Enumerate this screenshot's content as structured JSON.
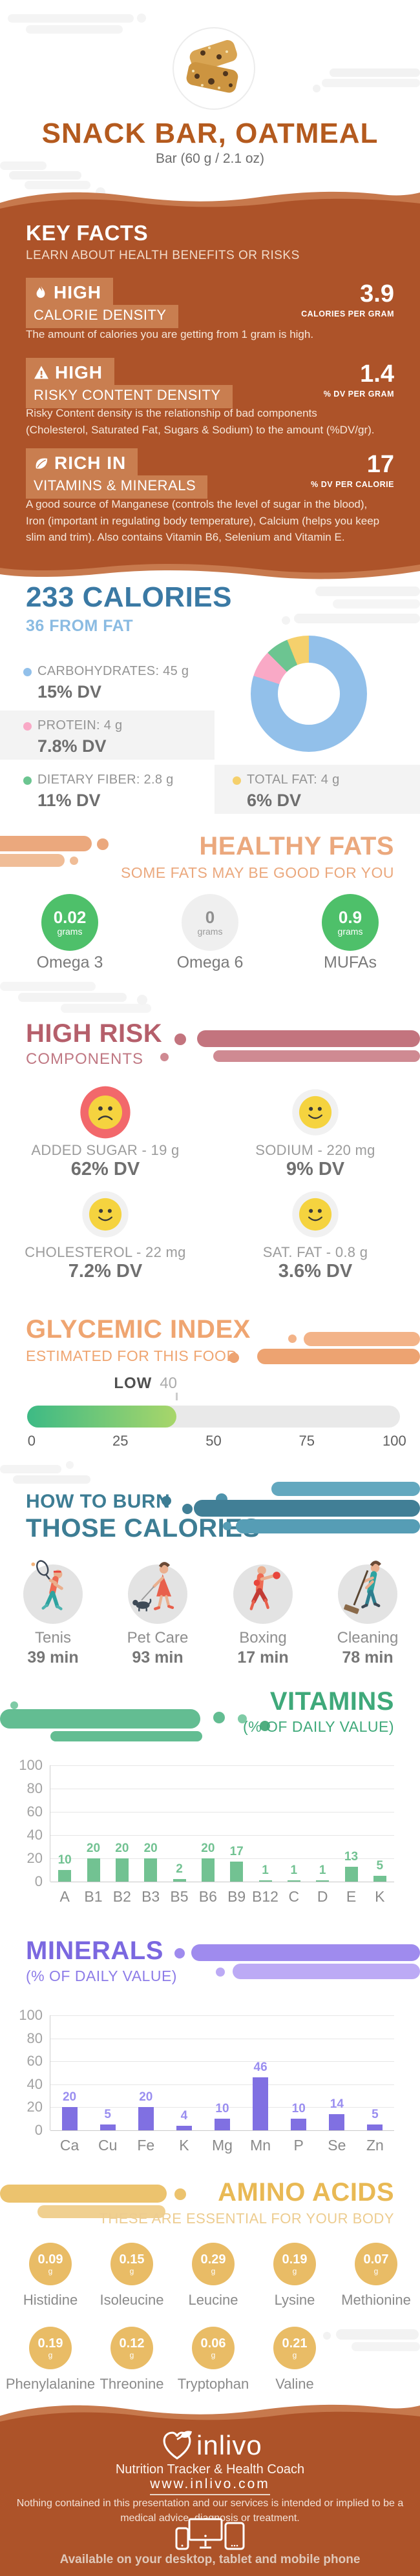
{
  "header": {
    "title": "SNACK BAR, OATMEAL",
    "subtitle": "Bar (60 g / 2.1 oz)",
    "image": "oatmeal-snack-bar-photo"
  },
  "key_facts": {
    "title": "KEY FACTS",
    "subtitle": "LEARN ABOUT HEALTH BENEFITS OR RISKS",
    "facts": [
      {
        "icon": "flame-icon",
        "badge_line1": "HIGH",
        "badge_line2": "CALORIE DENSITY",
        "value": "3.9",
        "unit": "CALORIES PER GRAM",
        "description": "The amount of calories you are getting from 1 gram is high."
      },
      {
        "icon": "warning-icon",
        "badge_line1": "HIGH",
        "badge_line2": "RISKY CONTENT DENSITY",
        "value": "1.4",
        "unit": "% DV PER GRAM",
        "description": "Risky Content density is the relationship of bad components (Cholesterol, Saturated Fat, Sugars & Sodium) to the amount (%DV/gr)."
      },
      {
        "icon": "leaf-icon",
        "badge_line1": "RICH IN",
        "badge_line2": "VITAMINS & MINERALS",
        "value": "17",
        "unit": "% DV PER CALORIE",
        "description": "A good source of Manganese (controls the level of sugar in the blood), Iron (important in regulating body temperature), Calcium (helps you keep slim and trim). Also contains Vitamin B6, Selenium and Vitamin E."
      }
    ]
  },
  "calories": {
    "title": "233 CALORIES",
    "subtitle": "36 FROM FAT",
    "legend": [
      {
        "label": "CARBOHYDRATES: 45 g",
        "dv": "15% DV",
        "color": "#92c0ea"
      },
      {
        "label": "PROTEIN: 4 g",
        "dv": "7.8% DV",
        "color": "#f9a9c6"
      },
      {
        "label": "DIETARY FIBER: 2.8 g",
        "dv": "11% DV",
        "color": "#6cc591"
      },
      {
        "label": "TOTAL FAT: 4 g",
        "dv": "6% DV",
        "color": "#f5d06c"
      }
    ]
  },
  "healthy_fats": {
    "title": "HEALTHY FATS",
    "subtitle": "SOME FATS MAY BE GOOD FOR YOU",
    "items": [
      {
        "name": "Omega 3",
        "value": "0.02",
        "unit": "grams",
        "good": true
      },
      {
        "name": "Omega 6",
        "value": "0",
        "unit": "grams",
        "good": false
      },
      {
        "name": "MUFAs",
        "value": "0.9",
        "unit": "grams",
        "good": true
      }
    ],
    "good_color": "#4ec06a",
    "neutral_color": "#efefef"
  },
  "high_risk": {
    "title": "HIGH RISK",
    "subtitle": "COMPONENTS",
    "items": [
      {
        "label": "ADDED SUGAR - 19 g",
        "dv": "62% DV",
        "mood": "sad"
      },
      {
        "label": "SODIUM - 220 mg",
        "dv": "9% DV",
        "mood": "happy"
      },
      {
        "label": "CHOLESTEROL - 22 mg",
        "dv": "7.2% DV",
        "mood": "happy"
      },
      {
        "label": "SAT. FAT - 0.8 g",
        "dv": "3.6% DV",
        "mood": "happy"
      }
    ]
  },
  "glycemic": {
    "title": "GLYCEMIC INDEX",
    "subtitle": "ESTIMATED FOR THIS FOOD"
  },
  "burn": {
    "title_line1": "HOW TO BURN",
    "title_line2": "THOSE CALORIES",
    "activities": [
      {
        "name": "Tenis",
        "minutes": "39 min",
        "icon": "tennis-icon"
      },
      {
        "name": "Pet Care",
        "minutes": "93 min",
        "icon": "dog-walking-icon"
      },
      {
        "name": "Boxing",
        "minutes": "17 min",
        "icon": "boxing-icon"
      },
      {
        "name": "Cleaning",
        "minutes": "78 min",
        "icon": "cleaning-icon"
      }
    ]
  },
  "vitamins": {
    "title": "VITAMINS",
    "subtitle": "(% OF DAILY VALUE)"
  },
  "minerals": {
    "title": "MINERALS",
    "subtitle": "(% OF DAILY VALUE)"
  },
  "amino": {
    "title": "AMINO ACIDS",
    "subtitle": "THESE ARE ESSENTIAL FOR YOUR BODY",
    "unit": "g",
    "items": [
      {
        "name": "Histidine",
        "value": "0.09"
      },
      {
        "name": "Isoleucine",
        "value": "0.15"
      },
      {
        "name": "Leucine",
        "value": "0.29"
      },
      {
        "name": "Lysine",
        "value": "0.19"
      },
      {
        "name": "Methionine",
        "value": "0.07"
      },
      {
        "name": "Phenylalanine",
        "value": "0.19"
      },
      {
        "name": "Threonine",
        "value": "0.12"
      },
      {
        "name": "Tryptophan",
        "value": "0.06"
      },
      {
        "name": "Valine",
        "value": "0.21"
      }
    ]
  },
  "footer": {
    "app_name": "inlivo",
    "tagline": "Nutrition Tracker & Health Coach",
    "url": "www.inlivo.com",
    "disclaimer": "Nothing contained in this presentation and our services is intended or implied to be a medical advice, diagnosis or treatment.",
    "availability": "Available on your desktop, tablet and mobile phone"
  },
  "chart_data": [
    {
      "type": "pie",
      "title": "233 CALORIES",
      "subtitle": "36 FROM FAT",
      "legend_position": "left",
      "segments": [
        {
          "name": "Carbohydrates",
          "grams": "45 g",
          "dv": "15% DV",
          "pct": 80.0,
          "color": "#92c0ea"
        },
        {
          "name": "Protein",
          "grams": "4 g",
          "dv": "7.8% DV",
          "pct": 7.5,
          "color": "#f9a9c6"
        },
        {
          "name": "Dietary Fiber",
          "grams": "2.8 g",
          "dv": "11% DV",
          "pct": 6.4,
          "color": "#6cc591"
        },
        {
          "name": "Total Fat",
          "grams": "4 g",
          "dv": "6% DV",
          "pct": 6.1,
          "color": "#f5d06c"
        }
      ]
    },
    {
      "type": "gauge",
      "title": "GLYCEMIC INDEX",
      "label": "LOW",
      "value": 40,
      "min": 0,
      "max": 100,
      "ticks": [
        0,
        25,
        50,
        75,
        100
      ],
      "fill_colors": [
        "#3dba85",
        "#a8d66a"
      ],
      "track_color": "#e9e9e9"
    },
    {
      "type": "bar",
      "title": "VITAMINS",
      "ylabel": "% OF DAILY VALUE",
      "categories": [
        "A",
        "B1",
        "B2",
        "B3",
        "B5",
        "B6",
        "B9",
        "B12",
        "C",
        "D",
        "E",
        "K"
      ],
      "values": [
        10,
        20,
        20,
        20,
        2,
        20,
        17,
        1,
        1,
        1,
        13,
        5
      ],
      "ylim": [
        0,
        100
      ],
      "yticks": [
        0,
        20,
        40,
        60,
        80,
        100
      ],
      "grid": true,
      "bar_color": "#72c292",
      "value_color": "#72c292"
    },
    {
      "type": "bar",
      "title": "MINERALS",
      "ylabel": "% OF DAILY VALUE",
      "categories": [
        "Ca",
        "Cu",
        "Fe",
        "K",
        "Mg",
        "Mn",
        "P",
        "Se",
        "Zn"
      ],
      "values": [
        20,
        5,
        20,
        4,
        10,
        46,
        10,
        14,
        5
      ],
      "ylim": [
        0,
        100
      ],
      "yticks": [
        0,
        20,
        40,
        60,
        80,
        100
      ],
      "grid": true,
      "bar_color": "#8070e2",
      "value_color": "#9a8ef0"
    }
  ]
}
